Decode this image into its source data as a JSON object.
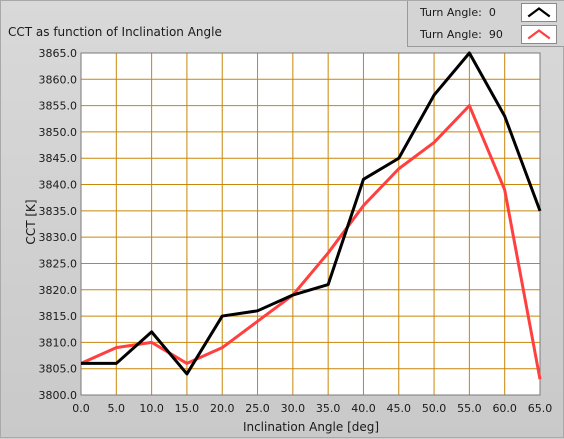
{
  "chart_data": {
    "type": "line",
    "title": "CCT as function of Inclination Angle",
    "xlabel": "Inclination Angle [deg]",
    "ylabel": "CCT [K]",
    "xlim": [
      0,
      65
    ],
    "ylim": [
      3800,
      3865
    ],
    "x_ticks": [
      "0.0",
      "5.0",
      "10.0",
      "15.0",
      "20.0",
      "25.0",
      "30.0",
      "35.0",
      "40.0",
      "45.0",
      "50.0",
      "55.0",
      "60.0",
      "65.0"
    ],
    "y_ticks": [
      "3800.0",
      "3805.0",
      "3810.0",
      "3815.0",
      "3820.0",
      "3825.0",
      "3830.0",
      "3835.0",
      "3840.0",
      "3845.0",
      "3850.0",
      "3855.0",
      "3860.0",
      "3865.0"
    ],
    "grid": true,
    "legend_position": "top-right",
    "x": [
      0,
      5,
      10,
      15,
      20,
      25,
      30,
      35,
      40,
      45,
      50,
      55,
      60,
      65
    ],
    "series": [
      {
        "name": "Turn Angle:",
        "value_label": "0",
        "color": "#000000",
        "values": [
          3806,
          3806,
          3812,
          3804,
          3815,
          3816,
          3819,
          3821,
          3841,
          3845,
          3857,
          3865,
          3853,
          3835
        ]
      },
      {
        "name": "Turn Angle:",
        "value_label": "90",
        "color": "#ff4040",
        "values": [
          3806,
          3809,
          3810,
          3806,
          3809,
          3814,
          3819,
          3827,
          3836,
          3843,
          3848,
          3855,
          3839,
          3803
        ]
      }
    ],
    "plot_background": "#ffffff",
    "grid_color": "#c8860a"
  }
}
